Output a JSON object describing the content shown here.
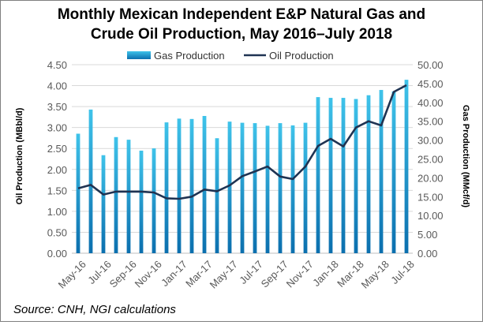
{
  "chart_data": {
    "type": "bar+line",
    "title_line1": "Monthly Mexican Independent E&P Natural Gas and",
    "title_line2": "Crude Oil Production, May 2016–July 2018",
    "ylabel_left": "Oil Production (MBbl/d)",
    "ylabel_right": "Gas Production (MMcf/d)",
    "source": "Source: CNH, NGI calculations",
    "legend": {
      "position": "top",
      "gas_label": "Gas Production",
      "oil_label": "Oil Production"
    },
    "colors": {
      "gas_top": "#3fc3ea",
      "gas_bottom": "#0b6fae",
      "oil": "#1f3352",
      "grid": "#d9d9d9"
    },
    "y_left": {
      "min": 0,
      "max": 4.5,
      "ticks": [
        "0.00",
        "0.50",
        "1.00",
        "1.50",
        "2.00",
        "2.50",
        "3.00",
        "3.50",
        "4.00",
        "4.50"
      ]
    },
    "y_right": {
      "min": 0,
      "max": 50,
      "ticks": [
        "0.00",
        "5.00",
        "10.00",
        "15.00",
        "20.00",
        "25.00",
        "30.00",
        "35.00",
        "40.00",
        "45.00",
        "50.00"
      ]
    },
    "x_tick_labels": [
      "May-16",
      "Jul-16",
      "Sep-16",
      "Nov-16",
      "Jan-17",
      "Mar-17",
      "May-17",
      "Jul-17",
      "Sep-17",
      "Nov-17",
      "Jan-18",
      "Mar-18",
      "May-18",
      "Jul-18"
    ],
    "categories": [
      "May-16",
      "Jun-16",
      "Jul-16",
      "Aug-16",
      "Sep-16",
      "Oct-16",
      "Nov-16",
      "Dec-16",
      "Jan-17",
      "Feb-17",
      "Mar-17",
      "Apr-17",
      "May-17",
      "Jun-17",
      "Jul-17",
      "Aug-17",
      "Sep-17",
      "Oct-17",
      "Nov-17",
      "Dec-17",
      "Jan-18",
      "Feb-18",
      "Mar-18",
      "Apr-18",
      "May-18",
      "Jun-18",
      "Jul-18"
    ],
    "series": [
      {
        "name": "Gas Production",
        "axis": "right",
        "kind": "bar",
        "values": [
          31.7,
          38.1,
          26.0,
          30.8,
          30.1,
          27.2,
          27.8,
          34.7,
          35.7,
          35.6,
          36.4,
          30.5,
          34.9,
          34.6,
          34.5,
          33.8,
          34.5,
          33.9,
          34.6,
          41.4,
          41.2,
          41.2,
          40.9,
          41.9,
          43.3,
          42.9,
          46.0
        ]
      },
      {
        "name": "Oil Production",
        "axis": "left",
        "kind": "line",
        "values": [
          1.55,
          1.63,
          1.4,
          1.47,
          1.47,
          1.47,
          1.45,
          1.31,
          1.3,
          1.35,
          1.52,
          1.48,
          1.62,
          1.84,
          1.95,
          2.07,
          1.83,
          1.77,
          2.07,
          2.56,
          2.73,
          2.55,
          3.0,
          3.15,
          3.05,
          3.85,
          4.01
        ]
      }
    ]
  }
}
